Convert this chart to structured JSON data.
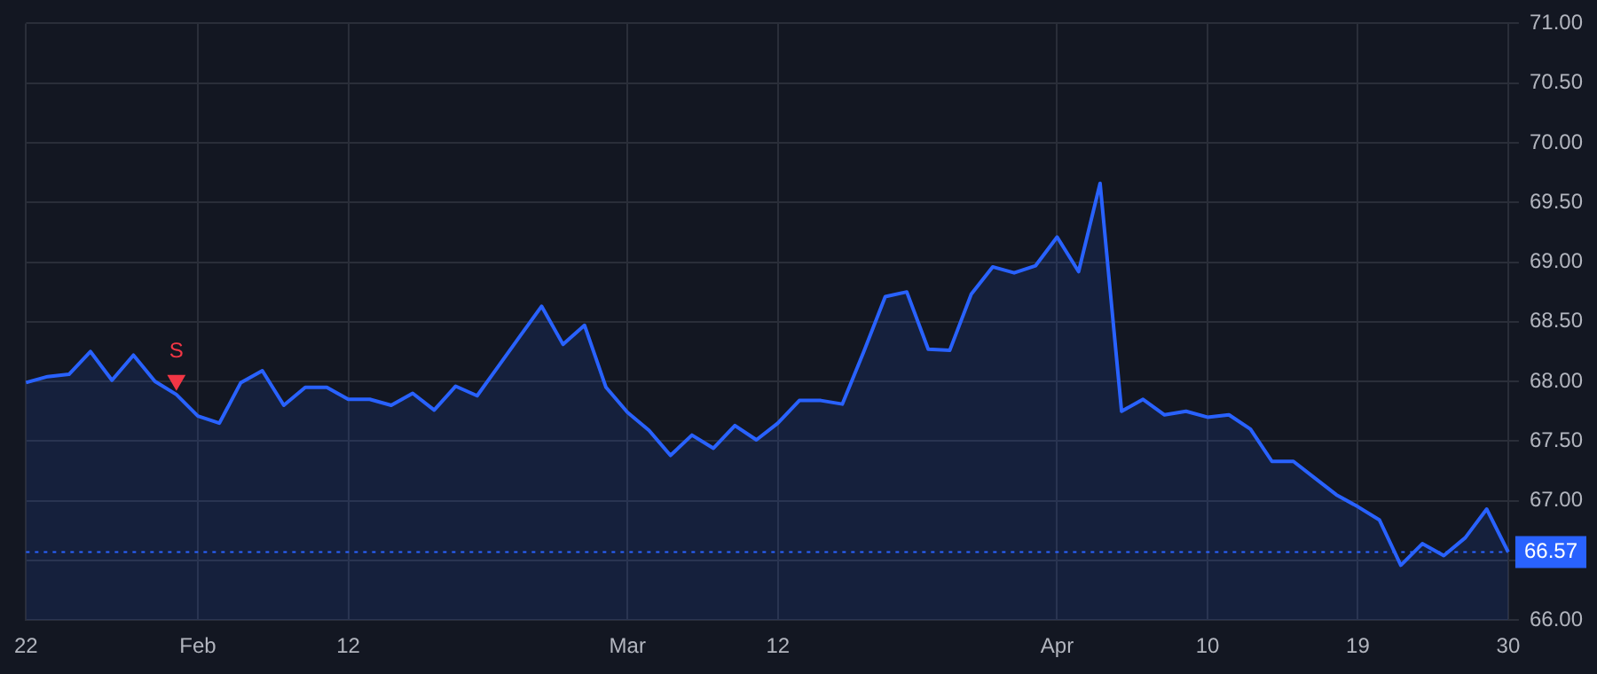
{
  "chart_data": {
    "type": "area",
    "categories": [
      "22",
      null,
      null,
      null,
      null,
      null,
      null,
      null,
      "Feb",
      null,
      null,
      null,
      null,
      null,
      null,
      "12",
      null,
      null,
      null,
      null,
      null,
      null,
      null,
      null,
      null,
      null,
      null,
      null,
      "Mar",
      null,
      null,
      null,
      null,
      null,
      null,
      "12",
      null,
      null,
      null,
      null,
      null,
      null,
      null,
      null,
      null,
      null,
      null,
      null,
      "Apr",
      null,
      null,
      null,
      null,
      null,
      null,
      "10",
      null,
      null,
      null,
      null,
      null,
      null,
      "19",
      null,
      null,
      null,
      null,
      null,
      null,
      "30"
    ],
    "series": [
      {
        "color": "#2962ff",
        "values": [
          67.99,
          68.04,
          68.06,
          68.25,
          68.01,
          68.22,
          68.0,
          67.89,
          67.71,
          67.65,
          67.99,
          68.09,
          67.8,
          67.95,
          67.95,
          67.85,
          67.85,
          67.8,
          67.9,
          67.76,
          67.96,
          67.88,
          68.13,
          68.38,
          68.63,
          68.31,
          68.47,
          67.95,
          67.74,
          67.59,
          67.38,
          67.55,
          67.44,
          67.63,
          67.51,
          67.65,
          67.84,
          67.84,
          67.81,
          68.25,
          68.71,
          68.75,
          68.27,
          68.26,
          68.73,
          68.96,
          68.91,
          68.97,
          69.21,
          68.92,
          69.66,
          67.75,
          67.85,
          67.72,
          67.75,
          67.7,
          67.72,
          67.6,
          67.33,
          67.33,
          67.19,
          67.05,
          66.95,
          66.84,
          66.46,
          66.64,
          66.54,
          66.69,
          66.93,
          66.57
        ]
      },
      {
        "type": "scatter",
        "color": "#f23645",
        "marker": "triangle",
        "values": [
          null,
          null,
          null,
          null,
          null,
          null,
          null,
          68.01,
          null,
          null,
          null,
          null,
          null,
          null,
          null,
          null,
          null,
          null,
          null,
          null,
          null,
          null,
          null,
          null,
          null,
          null,
          null,
          null,
          null,
          null,
          null,
          null,
          null,
          null,
          null,
          null,
          null,
          null,
          null,
          null,
          null,
          null,
          null,
          null,
          null,
          null,
          null,
          null,
          null,
          null,
          null,
          null,
          null,
          null,
          null,
          null,
          null,
          null,
          null,
          null,
          null,
          null,
          null,
          null,
          null,
          null,
          null,
          null,
          null,
          null
        ]
      }
    ],
    "annotations": [
      "S"
    ],
    "ylim": [
      66,
      71
    ],
    "yticks": [
      {
        "value": 66,
        "label": "66.00"
      },
      {
        "value": 66.5,
        "label": null
      },
      {
        "value": 67,
        "label": "67.00"
      },
      {
        "value": 67.5,
        "label": "67.50"
      },
      {
        "value": 68,
        "label": "68.00"
      },
      {
        "value": 68.5,
        "label": "68.50"
      },
      {
        "value": 69,
        "label": "69.00"
      },
      {
        "value": 69.5,
        "label": "69.50"
      },
      {
        "value": 70,
        "label": "70.00"
      },
      {
        "value": 70.5,
        "label": "70.50"
      },
      {
        "value": 71,
        "label": "71.00"
      }
    ],
    "ref_lines": [
      {
        "axis": "y",
        "value": 66.57,
        "label": "66.57",
        "color": "#2962ff",
        "line_style": "dotted"
      }
    ],
    "grid": true,
    "legend": false
  }
}
